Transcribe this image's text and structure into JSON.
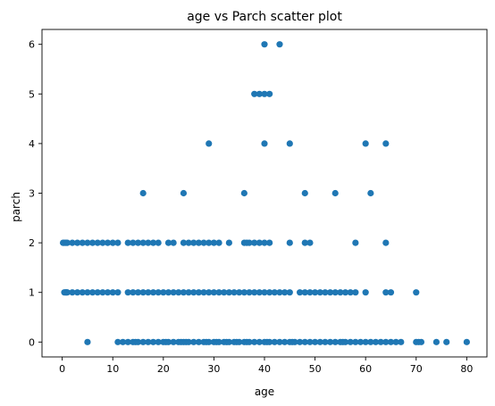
{
  "chart_data": {
    "type": "scatter",
    "title": "age vs Parch scatter plot",
    "xlabel": "age",
    "ylabel": "parch",
    "xlim": [
      -4.0,
      84.0
    ],
    "ylim": [
      -0.3,
      6.3
    ],
    "xticks": [
      0,
      10,
      20,
      30,
      40,
      50,
      60,
      70,
      80
    ],
    "yticks": [
      0,
      1,
      2,
      3,
      4,
      5,
      6
    ],
    "xtick_labels": [
      "0",
      "10",
      "20",
      "30",
      "40",
      "50",
      "60",
      "70",
      "80"
    ],
    "ytick_labels": [
      "0",
      "1",
      "2",
      "3",
      "4",
      "5",
      "6"
    ],
    "grid": false,
    "marker_color": "#1f77b4",
    "series": [
      {
        "points": [
          [
            5,
            0
          ],
          [
            11,
            0
          ],
          [
            12,
            0
          ],
          [
            13,
            0
          ],
          [
            14,
            0
          ],
          [
            14.5,
            0
          ],
          [
            15,
            0
          ],
          [
            16,
            0
          ],
          [
            17,
            0
          ],
          [
            18,
            0
          ],
          [
            19,
            0
          ],
          [
            20,
            0
          ],
          [
            20.5,
            0
          ],
          [
            21,
            0
          ],
          [
            22,
            0
          ],
          [
            23,
            0
          ],
          [
            23.5,
            0
          ],
          [
            24,
            0
          ],
          [
            24.5,
            0
          ],
          [
            25,
            0
          ],
          [
            26,
            0
          ],
          [
            27,
            0
          ],
          [
            28,
            0
          ],
          [
            28.5,
            0
          ],
          [
            29,
            0
          ],
          [
            30,
            0
          ],
          [
            30.5,
            0
          ],
          [
            31,
            0
          ],
          [
            32,
            0
          ],
          [
            32.5,
            0
          ],
          [
            33,
            0
          ],
          [
            34,
            0
          ],
          [
            34.5,
            0
          ],
          [
            35,
            0
          ],
          [
            36,
            0
          ],
          [
            36.5,
            0
          ],
          [
            37,
            0
          ],
          [
            38,
            0
          ],
          [
            39,
            0
          ],
          [
            40,
            0
          ],
          [
            40.5,
            0
          ],
          [
            41,
            0
          ],
          [
            42,
            0
          ],
          [
            43,
            0
          ],
          [
            44,
            0
          ],
          [
            45,
            0
          ],
          [
            45.5,
            0
          ],
          [
            46,
            0
          ],
          [
            47,
            0
          ],
          [
            48,
            0
          ],
          [
            49,
            0
          ],
          [
            50,
            0
          ],
          [
            51,
            0
          ],
          [
            52,
            0
          ],
          [
            53,
            0
          ],
          [
            54,
            0
          ],
          [
            55,
            0
          ],
          [
            55.5,
            0
          ],
          [
            56,
            0
          ],
          [
            57,
            0
          ],
          [
            58,
            0
          ],
          [
            59,
            0
          ],
          [
            60,
            0
          ],
          [
            61,
            0
          ],
          [
            62,
            0
          ],
          [
            63,
            0
          ],
          [
            64,
            0
          ],
          [
            65,
            0
          ],
          [
            66,
            0
          ],
          [
            67,
            0
          ],
          [
            70,
            0
          ],
          [
            70.5,
            0
          ],
          [
            71,
            0
          ],
          [
            74,
            0
          ],
          [
            76,
            0
          ],
          [
            80,
            0
          ],
          [
            0.42,
            1
          ],
          [
            0.67,
            1
          ],
          [
            0.83,
            1
          ],
          [
            1,
            1
          ],
          [
            2,
            1
          ],
          [
            3,
            1
          ],
          [
            4,
            1
          ],
          [
            5,
            1
          ],
          [
            6,
            1
          ],
          [
            7,
            1
          ],
          [
            8,
            1
          ],
          [
            9,
            1
          ],
          [
            10,
            1
          ],
          [
            11,
            1
          ],
          [
            13,
            1
          ],
          [
            14,
            1
          ],
          [
            15,
            1
          ],
          [
            16,
            1
          ],
          [
            17,
            1
          ],
          [
            18,
            1
          ],
          [
            19,
            1
          ],
          [
            20,
            1
          ],
          [
            21,
            1
          ],
          [
            22,
            1
          ],
          [
            23,
            1
          ],
          [
            24,
            1
          ],
          [
            25,
            1
          ],
          [
            26,
            1
          ],
          [
            27,
            1
          ],
          [
            28,
            1
          ],
          [
            29,
            1
          ],
          [
            30,
            1
          ],
          [
            31,
            1
          ],
          [
            32,
            1
          ],
          [
            33,
            1
          ],
          [
            34,
            1
          ],
          [
            35,
            1
          ],
          [
            36,
            1
          ],
          [
            37,
            1
          ],
          [
            38,
            1
          ],
          [
            39,
            1
          ],
          [
            40,
            1
          ],
          [
            41,
            1
          ],
          [
            42,
            1
          ],
          [
            43,
            1
          ],
          [
            44,
            1
          ],
          [
            45,
            1
          ],
          [
            47,
            1
          ],
          [
            48,
            1
          ],
          [
            49,
            1
          ],
          [
            50,
            1
          ],
          [
            51,
            1
          ],
          [
            52,
            1
          ],
          [
            53,
            1
          ],
          [
            54,
            1
          ],
          [
            55,
            1
          ],
          [
            56,
            1
          ],
          [
            57,
            1
          ],
          [
            58,
            1
          ],
          [
            60,
            1
          ],
          [
            64,
            1
          ],
          [
            65,
            1
          ],
          [
            70,
            1
          ],
          [
            0.17,
            2
          ],
          [
            0.42,
            2
          ],
          [
            0.75,
            2
          ],
          [
            1,
            2
          ],
          [
            2,
            2
          ],
          [
            3,
            2
          ],
          [
            4,
            2
          ],
          [
            5,
            2
          ],
          [
            6,
            2
          ],
          [
            7,
            2
          ],
          [
            8,
            2
          ],
          [
            9,
            2
          ],
          [
            10,
            2
          ],
          [
            11,
            2
          ],
          [
            13,
            2
          ],
          [
            14,
            2
          ],
          [
            15,
            2
          ],
          [
            16,
            2
          ],
          [
            17,
            2
          ],
          [
            18,
            2
          ],
          [
            19,
            2
          ],
          [
            21,
            2
          ],
          [
            22,
            2
          ],
          [
            24,
            2
          ],
          [
            25,
            2
          ],
          [
            26,
            2
          ],
          [
            27,
            2
          ],
          [
            28,
            2
          ],
          [
            29,
            2
          ],
          [
            30,
            2
          ],
          [
            31,
            2
          ],
          [
            33,
            2
          ],
          [
            36,
            2
          ],
          [
            36.5,
            2
          ],
          [
            37,
            2
          ],
          [
            38,
            2
          ],
          [
            39,
            2
          ],
          [
            40,
            2
          ],
          [
            41,
            2
          ],
          [
            45,
            2
          ],
          [
            48,
            2
          ],
          [
            49,
            2
          ],
          [
            58,
            2
          ],
          [
            64,
            2
          ],
          [
            16,
            3
          ],
          [
            24,
            3
          ],
          [
            36,
            3
          ],
          [
            48,
            3
          ],
          [
            54,
            3
          ],
          [
            61,
            3
          ],
          [
            29,
            4
          ],
          [
            40,
            4
          ],
          [
            45,
            4
          ],
          [
            60,
            4
          ],
          [
            64,
            4
          ],
          [
            38,
            5
          ],
          [
            39,
            5
          ],
          [
            40,
            5
          ],
          [
            41,
            5
          ],
          [
            40,
            6
          ],
          [
            43,
            6
          ]
        ]
      }
    ]
  }
}
